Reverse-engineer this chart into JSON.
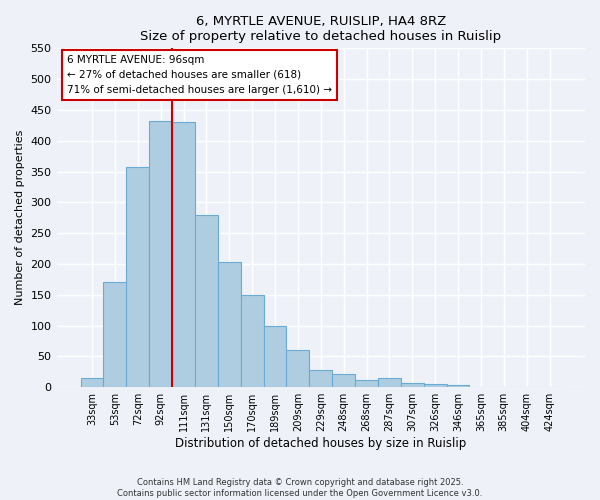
{
  "title": "6, MYRTLE AVENUE, RUISLIP, HA4 8RZ",
  "subtitle": "Size of property relative to detached houses in Ruislip",
  "xlabel": "Distribution of detached houses by size in Ruislip",
  "ylabel": "Number of detached properties",
  "bar_labels": [
    "33sqm",
    "53sqm",
    "72sqm",
    "92sqm",
    "111sqm",
    "131sqm",
    "150sqm",
    "170sqm",
    "189sqm",
    "209sqm",
    "229sqm",
    "248sqm",
    "268sqm",
    "287sqm",
    "307sqm",
    "326sqm",
    "346sqm",
    "365sqm",
    "385sqm",
    "404sqm",
    "424sqm"
  ],
  "bar_values": [
    15,
    170,
    357,
    432,
    430,
    280,
    203,
    150,
    100,
    60,
    28,
    22,
    12,
    15,
    7,
    5,
    3,
    1,
    1,
    0,
    0
  ],
  "bar_color": "#aecde0",
  "bar_edge_color": "#6aaad4",
  "vline_x_idx": 3,
  "vline_color": "#cc0000",
  "annotation_line1": "6 MYRTLE AVENUE: 96sqm",
  "annotation_line2": "← 27% of detached houses are smaller (618)",
  "annotation_line3": "71% of semi-detached houses are larger (1,610) →",
  "annotation_box_color": "#ffffff",
  "annotation_box_edge": "#cc0000",
  "ylim": [
    0,
    550
  ],
  "yticks": [
    0,
    50,
    100,
    150,
    200,
    250,
    300,
    350,
    400,
    450,
    500,
    550
  ],
  "footer_line1": "Contains HM Land Registry data © Crown copyright and database right 2025.",
  "footer_line2": "Contains public sector information licensed under the Open Government Licence v3.0.",
  "bg_color": "#eef2f8",
  "grid_color": "#ffffff"
}
